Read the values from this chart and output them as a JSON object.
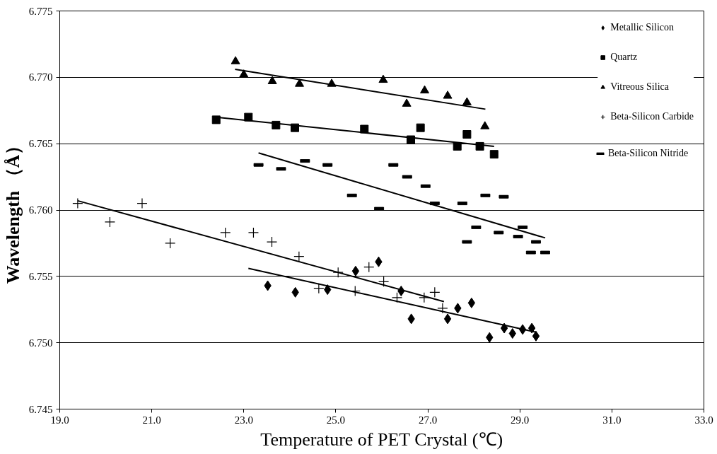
{
  "chart_data": {
    "type": "scatter",
    "xlabel": "Temperature of PET Crystal (℃)",
    "ylabel": "Wavelength （Å）",
    "xlim": [
      19,
      33
    ],
    "ylim": [
      6.745,
      6.775
    ],
    "xticks": [
      {
        "value": 19,
        "label": "19.0"
      },
      {
        "value": 21,
        "label": "21.0"
      },
      {
        "value": 23,
        "label": "23.0"
      },
      {
        "value": 25,
        "label": "25.0"
      },
      {
        "value": 27,
        "label": "27.0"
      },
      {
        "value": 29,
        "label": "29.0"
      },
      {
        "value": 31,
        "label": "31.0"
      },
      {
        "value": 33,
        "label": "33.0"
      }
    ],
    "yticks": [
      {
        "value": 6.745,
        "label": "6.745"
      },
      {
        "value": 6.75,
        "label": "6.750"
      },
      {
        "value": 6.755,
        "label": "6.755"
      },
      {
        "value": 6.76,
        "label": "6.760"
      },
      {
        "value": 6.765,
        "label": "6.765"
      },
      {
        "value": 6.77,
        "label": "6.770"
      },
      {
        "value": 6.775,
        "label": "6.775"
      }
    ],
    "grid": "y",
    "legend": "top right",
    "series": [
      {
        "name": "Metallic Silicon",
        "color": "#000000",
        "marker": "diamond",
        "x": [
          23.52,
          24.12,
          24.82,
          25.43,
          25.93,
          26.42,
          26.64,
          27.43,
          27.65,
          27.95,
          28.34,
          28.66,
          28.84,
          29.06,
          29.26,
          29.35
        ],
        "values": [
          6.7543,
          6.7538,
          6.754,
          6.7554,
          6.7561,
          6.7539,
          6.7518,
          6.7518,
          6.7526,
          6.753,
          6.7504,
          6.7511,
          6.7507,
          6.751,
          6.7511,
          6.7505
        ]
      },
      {
        "name": "Quartz",
        "color": "#000000",
        "marker": "square",
        "x": [
          22.4,
          23.1,
          23.7,
          24.11,
          25.62,
          26.63,
          26.84,
          27.64,
          27.85,
          28.13,
          28.44
        ],
        "values": [
          6.7668,
          6.767,
          6.7664,
          6.7662,
          6.7661,
          6.7653,
          6.7662,
          6.7648,
          6.7657,
          6.7648,
          6.7642
        ]
      },
      {
        "name": "Vitreous Silica",
        "color": "#000000",
        "marker": "triangle",
        "x": [
          22.82,
          23.0,
          23.62,
          24.21,
          24.91,
          26.03,
          26.54,
          26.93,
          27.43,
          27.85,
          28.24
        ],
        "values": [
          6.7712,
          6.7702,
          6.7697,
          6.7695,
          6.7695,
          6.7698,
          6.768,
          6.769,
          6.7686,
          6.7681,
          6.7663
        ]
      },
      {
        "name": "Beta-Silicon Carbide",
        "color": "#000000",
        "marker": "cross",
        "x": [
          19.39,
          20.09,
          20.79,
          21.4,
          22.6,
          23.21,
          23.61,
          24.2,
          24.63,
          25.05,
          25.42,
          25.72,
          26.04,
          26.33,
          26.92,
          27.15,
          27.32
        ],
        "values": [
          6.7605,
          6.7591,
          6.7605,
          6.7575,
          6.7583,
          6.7583,
          6.7576,
          6.7565,
          6.7541,
          6.7553,
          6.7539,
          6.7557,
          6.7546,
          6.7534,
          6.7534,
          6.7538,
          6.7526
        ]
      },
      {
        "name": "Beta-Silicon Nitride",
        "color": "#000000",
        "x": [
          23.32,
          23.81,
          24.33,
          24.82,
          25.35,
          25.94,
          26.25,
          26.55,
          26.95,
          27.15,
          27.75,
          27.85,
          28.05,
          28.25,
          28.54,
          28.65,
          28.96,
          29.06,
          29.24,
          29.35,
          29.55
        ],
        "values": [
          6.7634,
          6.7631,
          6.7637,
          6.7634,
          6.7611,
          6.7601,
          6.7634,
          6.7625,
          6.7618,
          6.7605,
          6.7605,
          6.7576,
          6.7587,
          6.7611,
          6.7583,
          6.761,
          6.758,
          6.7587,
          6.7568,
          6.7576,
          6.7568
        ]
      },
      {
        "type": "line",
        "color": "#000000",
        "marker": "none",
        "x": [
          23.1,
          29.35
        ],
        "values": [
          6.7556,
          6.7508
        ]
      },
      {
        "type": "line",
        "color": "#000000",
        "marker": "none",
        "x": [
          22.4,
          28.44
        ],
        "values": [
          6.767,
          6.7648
        ]
      },
      {
        "type": "line",
        "color": "#000000",
        "marker": "none",
        "x": [
          22.81,
          28.25
        ],
        "values": [
          6.7706,
          6.7676
        ]
      },
      {
        "type": "line",
        "color": "#000000",
        "marker": "none",
        "x": [
          19.39,
          27.35
        ],
        "values": [
          6.7607,
          6.7531
        ]
      },
      {
        "type": "line",
        "color": "#000000",
        "marker": "none",
        "x": [
          23.32,
          29.55
        ],
        "values": [
          6.7643,
          6.7579
        ]
      }
    ]
  }
}
